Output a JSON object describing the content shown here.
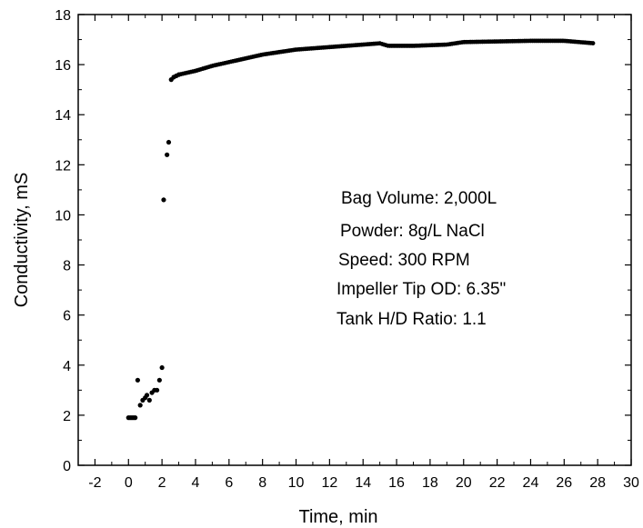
{
  "chart_data": {
    "type": "scatter",
    "xlabel": "Time, min",
    "ylabel": "Conductivity, mS",
    "xlim": [
      -3,
      30
    ],
    "ylim": [
      0,
      18
    ],
    "x_ticks": [
      -2,
      0,
      2,
      4,
      6,
      8,
      10,
      12,
      14,
      16,
      18,
      20,
      22,
      24,
      26,
      28,
      30
    ],
    "y_ticks": [
      0,
      2,
      4,
      6,
      8,
      10,
      12,
      14,
      16,
      18
    ],
    "grid": false,
    "marker_color": "#000000",
    "annotations": [
      "Bag Volume:  2,000L",
      "Powder:  8g/L NaCl",
      "Speed:  300 RPM",
      "Impeller Tip OD:  6.35\"",
      "Tank H/D Ratio: 1.1"
    ],
    "series": [
      {
        "points": [
          [
            0.0,
            1.9
          ],
          [
            0.1,
            1.9
          ],
          [
            0.2,
            1.9
          ],
          [
            0.3,
            1.9
          ],
          [
            0.4,
            1.9
          ],
          [
            0.55,
            3.4
          ],
          [
            0.7,
            2.4
          ],
          [
            0.85,
            2.6
          ],
          [
            1.0,
            2.7
          ],
          [
            1.1,
            2.8
          ],
          [
            1.25,
            2.6
          ],
          [
            1.4,
            2.9
          ],
          [
            1.55,
            3.0
          ],
          [
            1.7,
            3.0
          ],
          [
            1.85,
            3.4
          ],
          [
            2.0,
            3.9
          ],
          [
            2.1,
            10.6
          ],
          [
            2.3,
            12.4
          ],
          [
            2.4,
            12.9
          ],
          [
            2.55,
            15.4
          ],
          [
            2.7,
            15.5
          ],
          [
            2.85,
            15.55
          ],
          [
            3.0,
            15.6
          ]
        ]
      }
    ],
    "curve_keypoints": [
      [
        3.0,
        15.6
      ],
      [
        4.0,
        15.75
      ],
      [
        5.0,
        15.95
      ],
      [
        6.0,
        16.1
      ],
      [
        7.0,
        16.25
      ],
      [
        8.0,
        16.4
      ],
      [
        10.0,
        16.6
      ],
      [
        12.0,
        16.7
      ],
      [
        14.0,
        16.8
      ],
      [
        15.0,
        16.85
      ],
      [
        15.5,
        16.75
      ],
      [
        17.0,
        16.75
      ],
      [
        19.0,
        16.8
      ],
      [
        20.0,
        16.9
      ],
      [
        24.0,
        16.95
      ],
      [
        26.0,
        16.95
      ],
      [
        27.8,
        16.85
      ]
    ]
  }
}
